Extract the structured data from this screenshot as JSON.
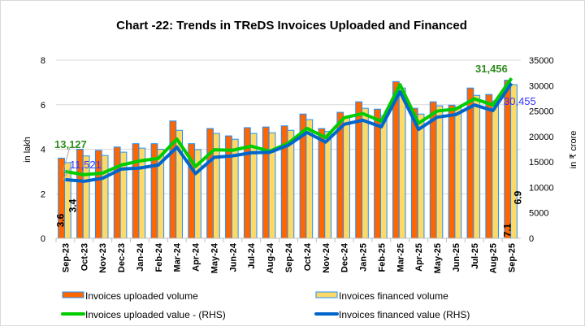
{
  "chart_data": {
    "type": "bar+line",
    "title": "Chart -22: Trends in TReDS Invoices Uploaded and Financed",
    "ylabel_left": "in lakh",
    "ylabel_right": "in ₹ crore",
    "ylim_left": [
      0,
      8
    ],
    "yticks_left": [
      "0",
      "2",
      "4",
      "6",
      "8"
    ],
    "ylim_right": [
      0,
      35000
    ],
    "yticks_right": [
      "0",
      "5000",
      "10000",
      "15000",
      "20000",
      "25000",
      "30000",
      "35000"
    ],
    "grid": true,
    "legend_position": "bottom",
    "categories": [
      "Sep-23",
      "Oct-23",
      "Nov-23",
      "Dec-23",
      "Jan-24",
      "Feb-24",
      "Mar-24",
      "Apr-24",
      "May-24",
      "Jun-24",
      "Jul-24",
      "Aug-24",
      "Sep-24",
      "Oct-24",
      "Nov-24",
      "Dec-24",
      "Jan-25",
      "Feb-25",
      "Mar-25",
      "Apr-25",
      "May-25",
      "Jun-25",
      "Jul-25",
      "Aug-25",
      "Sep-25"
    ],
    "series": [
      {
        "name": "Invoices uploaded volume",
        "kind": "bar",
        "axis": "left",
        "color": "#ff6600",
        "values": [
          3.6,
          4.0,
          3.95,
          4.1,
          4.25,
          4.25,
          5.27,
          4.25,
          4.93,
          4.6,
          4.97,
          5.0,
          5.05,
          5.58,
          4.93,
          5.66,
          6.13,
          5.8,
          7.04,
          5.84,
          6.13,
          5.98,
          6.75,
          6.46,
          7.1
        ]
      },
      {
        "name": "Invoices financed volume",
        "kind": "bar",
        "axis": "left",
        "color": "#ffd966",
        "values": [
          3.4,
          3.7,
          3.72,
          3.87,
          4.05,
          4.0,
          4.85,
          3.98,
          4.71,
          4.45,
          4.71,
          4.74,
          4.85,
          5.33,
          4.8,
          5.44,
          5.84,
          5.5,
          6.75,
          5.58,
          5.95,
          5.9,
          6.42,
          6.17,
          6.9
        ]
      },
      {
        "name": "Invoices uploaded value - (RHS)",
        "kind": "line",
        "axis": "right",
        "color": "#00cc00",
        "values": [
          13127,
          12500,
          12800,
          14400,
          15200,
          15700,
          19500,
          14100,
          17400,
          17300,
          18100,
          17100,
          18700,
          21600,
          19800,
          23700,
          24500,
          23000,
          30200,
          22600,
          25000,
          25400,
          27400,
          26200,
          31456
        ]
      },
      {
        "name": "Invoices financed value (RHS)",
        "kind": "line",
        "axis": "right",
        "color": "#0066cc",
        "values": [
          11521,
          11200,
          11800,
          13600,
          13800,
          14400,
          17900,
          12700,
          15900,
          16200,
          16800,
          16900,
          18300,
          20800,
          18900,
          22400,
          23200,
          21900,
          28800,
          21400,
          23800,
          24300,
          26200,
          25100,
          30455
        ]
      }
    ],
    "data_labels": {
      "first_uploaded_volume": "3.6",
      "first_financed_volume": "3.4",
      "last_uploaded_volume": "7.1",
      "last_financed_volume": "6.9",
      "first_uploaded_value": "13,127",
      "first_financed_value": "11,521",
      "last_uploaded_value": "31,456",
      "last_financed_value": "30,455"
    }
  }
}
